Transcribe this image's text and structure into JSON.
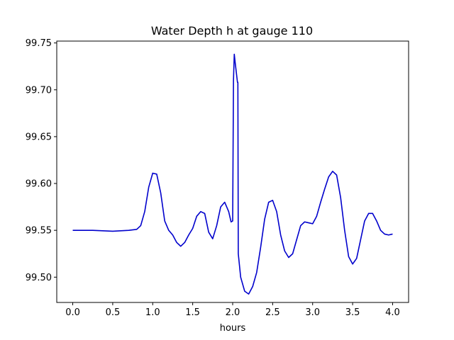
{
  "chart_data": {
    "type": "line",
    "title": "Water Depth h at gauge 110",
    "xlabel": "hours",
    "ylabel": "",
    "xlim": [
      -0.2,
      4.2
    ],
    "ylim": [
      99.473,
      99.752
    ],
    "xticks": [
      "0.0",
      "0.5",
      "1.0",
      "1.5",
      "2.0",
      "2.5",
      "3.0",
      "3.5",
      "4.0"
    ],
    "yticks": [
      "99.50",
      "99.55",
      "99.60",
      "99.65",
      "99.70",
      "99.75"
    ],
    "grid": false,
    "series_color": "#0000cc",
    "series": [
      {
        "x": [
          0.0,
          0.25,
          0.5,
          0.7,
          0.8,
          0.85,
          0.9,
          0.95,
          1.0,
          1.05,
          1.1,
          1.15,
          1.2,
          1.25,
          1.3,
          1.35,
          1.4,
          1.45,
          1.5,
          1.55,
          1.6,
          1.65,
          1.7,
          1.75,
          1.8,
          1.85,
          1.9,
          1.95,
          1.98,
          2.0,
          2.01,
          2.02,
          2.03,
          2.06,
          2.065,
          2.07,
          2.1,
          2.15,
          2.2,
          2.25,
          2.3,
          2.35,
          2.4,
          2.45,
          2.5,
          2.55,
          2.6,
          2.65,
          2.7,
          2.75,
          2.8,
          2.85,
          2.9,
          2.95,
          3.0,
          3.05,
          3.1,
          3.15,
          3.2,
          3.25,
          3.3,
          3.35,
          3.4,
          3.45,
          3.5,
          3.55,
          3.6,
          3.65,
          3.7,
          3.75,
          3.8,
          3.85,
          3.9,
          3.95,
          4.0
        ],
        "y": [
          99.55,
          99.55,
          99.549,
          99.55,
          99.551,
          99.555,
          99.57,
          99.596,
          99.611,
          99.61,
          99.59,
          99.56,
          99.55,
          99.545,
          99.537,
          99.533,
          99.537,
          99.545,
          99.552,
          99.565,
          99.57,
          99.568,
          99.548,
          99.541,
          99.555,
          99.575,
          99.58,
          99.57,
          99.559,
          99.56,
          99.71,
          99.738,
          99.73,
          99.708,
          99.708,
          99.525,
          99.5,
          99.485,
          99.482,
          99.49,
          99.505,
          99.532,
          99.562,
          99.58,
          99.582,
          99.57,
          99.545,
          99.528,
          99.521,
          99.525,
          99.54,
          99.555,
          99.559,
          99.558,
          99.557,
          99.565,
          99.58,
          99.594,
          99.607,
          99.613,
          99.609,
          99.585,
          99.55,
          99.522,
          99.514,
          99.52,
          99.54,
          99.56,
          99.568,
          99.568,
          99.56,
          99.55,
          99.546,
          99.545,
          99.546
        ]
      }
    ]
  }
}
